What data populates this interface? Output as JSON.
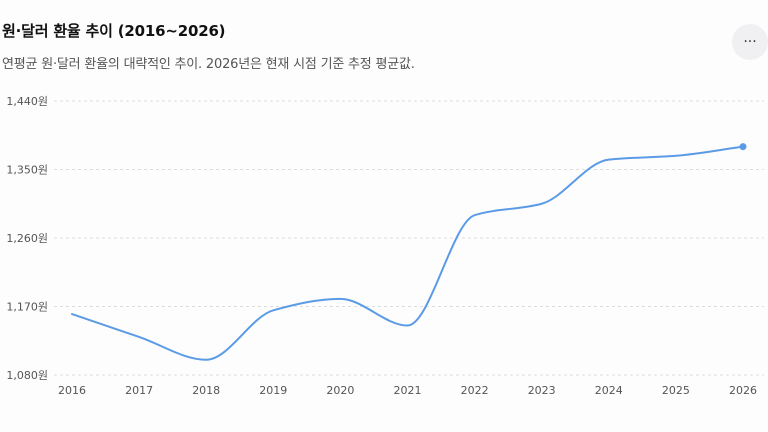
{
  "header": {
    "title": "원·달러 환율 추이 (2016~2026)",
    "subtitle": "연평균 원·달러 환율의 대략적인 추이. 2026년은 현재 시점 기준 추정 평균값.",
    "more_icon": "more-horizontal-icon",
    "more_label": "···"
  },
  "colors": {
    "line": "#5b9be6",
    "grid": "#dddddd",
    "tick_text": "#555555"
  },
  "chart_data": {
    "type": "line",
    "title": "원·달러 환율 추이 (2016~2026)",
    "subtitle": "연평균 원·달러 환율의 대략적인 추이. 2026년은 현재 시점 기준 추정 평균값.",
    "categories": [
      "2016",
      "2017",
      "2018",
      "2019",
      "2020",
      "2021",
      "2022",
      "2023",
      "2024",
      "2025",
      "2026"
    ],
    "series": [
      {
        "values": [
          1160,
          1130,
          1100,
          1165,
          1180,
          1145,
          1290,
          1305,
          1363,
          1368,
          1380
        ]
      }
    ],
    "y_ticks": [
      1080,
      1170,
      1260,
      1350,
      1440
    ],
    "y_tick_labels": [
      "1,080원",
      "1,170원",
      "1,260원",
      "1,350원",
      "1,440원"
    ],
    "ylim": [
      1080,
      1440
    ],
    "grid": true,
    "grid_style": "dashed-horizontal",
    "end_marker": true
  }
}
